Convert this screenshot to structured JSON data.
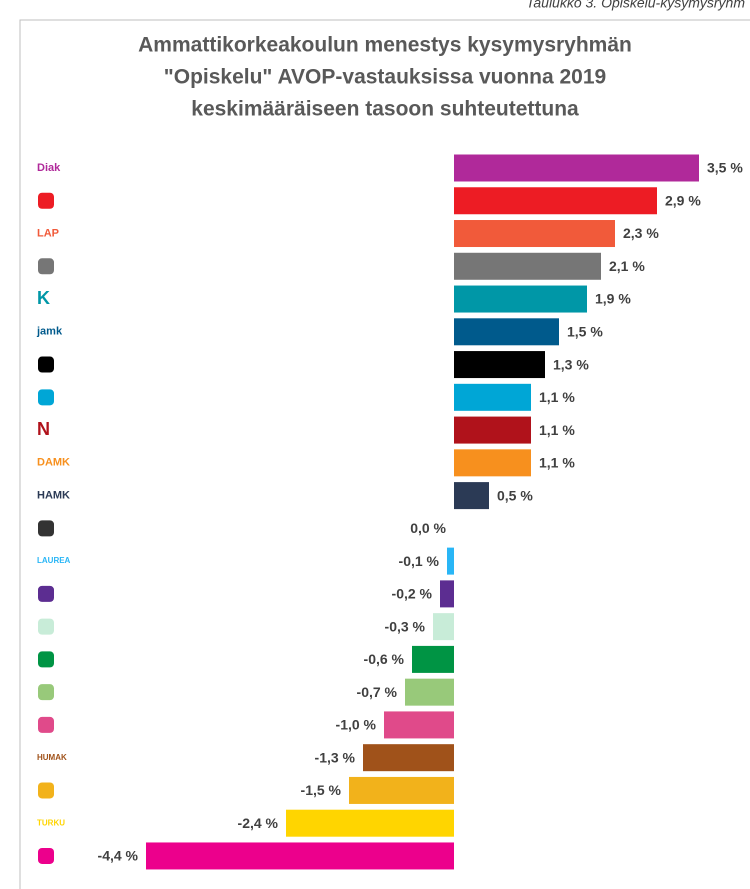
{
  "chart_data": {
    "type": "bar",
    "orientation": "horizontal",
    "caption": "Taulukko 3. Opiskelu-kysymysryhm",
    "title_lines": [
      "Ammattikorkeakoulun  menestys kysymysryhmän",
      "\"Opiskelu\" AVOP-vastauksissa vuonna  2019",
      "keskimääräiseen tasoon suhteutettuna"
    ],
    "categories": [
      "Diak",
      null,
      "LAP",
      null,
      "K",
      "jamk",
      null,
      null,
      "N",
      "DAMK",
      "HAMK",
      null,
      "LAUREA",
      null,
      null,
      null,
      null,
      null,
      "HUMAK",
      null,
      "TURKU",
      null
    ],
    "values": [
      3.5,
      2.9,
      2.3,
      2.1,
      1.9,
      1.5,
      1.3,
      1.1,
      1.1,
      1.1,
      0.5,
      0.0,
      -0.1,
      -0.2,
      -0.3,
      -0.6,
      -0.7,
      -1.0,
      -1.3,
      -1.5,
      -2.4,
      -4.4
    ],
    "value_labels": [
      "3,5 %",
      "2,9 %",
      "2,3 %",
      "2,1 %",
      "1,9 %",
      "1,5 %",
      "1,3 %",
      "1,1 %",
      "1,1 %",
      "1,1 %",
      "0,5 %",
      "0,0 %",
      "-0,1 %",
      "-0,2 %",
      "-0,3 %",
      "-0,6 %",
      "-0,7 %",
      "-1,0 %",
      "-1,3 %",
      "-1,5 %",
      "-2,4 %",
      "-4,4 %"
    ],
    "colors": [
      "#b0299a",
      "#ed1c24",
      "#f15a3a",
      "#767676",
      "#0097a7",
      "#005a8c",
      "#000000",
      "#00a6d6",
      "#b0121b",
      "#f7901e",
      "#2b3a55",
      "#333333",
      "#29b6f6",
      "#5c2d91",
      "#c8ecd8",
      "#009444",
      "#98c97a",
      "#e04a8a",
      "#a0521a",
      "#f2b21b",
      "#ffd500",
      "#ec008c"
    ],
    "xlim": [
      -4.5,
      3.6
    ]
  }
}
